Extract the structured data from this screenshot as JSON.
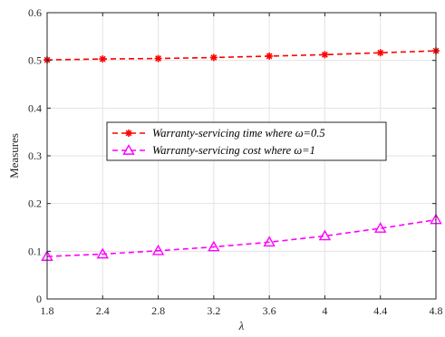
{
  "chart_data": {
    "type": "line",
    "title": "",
    "xlabel": "λ",
    "ylabel": "Measures",
    "x": [
      1.8,
      2.4,
      2.8,
      3.2,
      3.6,
      4,
      4.4,
      4.8
    ],
    "x_tick_labels": [
      "1.8",
      "2.4",
      "2.8",
      "3.2",
      "3.6",
      "4",
      "4.4",
      "4.8"
    ],
    "ylim": [
      0,
      0.6
    ],
    "y_ticks": [
      0,
      0.1,
      0.2,
      0.3,
      0.4,
      0.5,
      0.6
    ],
    "y_tick_labels": [
      "0",
      "0.1",
      "0.2",
      "0.3",
      "0.4",
      "0.5",
      "0.6"
    ],
    "grid": true,
    "legend_position": "center",
    "series": [
      {
        "name": "Warranty-servicing time where  ω=0.5",
        "values": [
          0.501,
          0.503,
          0.504,
          0.506,
          0.509,
          0.512,
          0.516,
          0.52
        ],
        "color": "#ff0000",
        "marker": "asterisk",
        "line_style": "dashed"
      },
      {
        "name": "Warranty-servicing cost where  ω=1",
        "values": [
          0.089,
          0.094,
          0.101,
          0.109,
          0.119,
          0.132,
          0.148,
          0.166
        ],
        "color": "#ff00ff",
        "marker": "triangle",
        "line_style": "dashed"
      }
    ]
  }
}
